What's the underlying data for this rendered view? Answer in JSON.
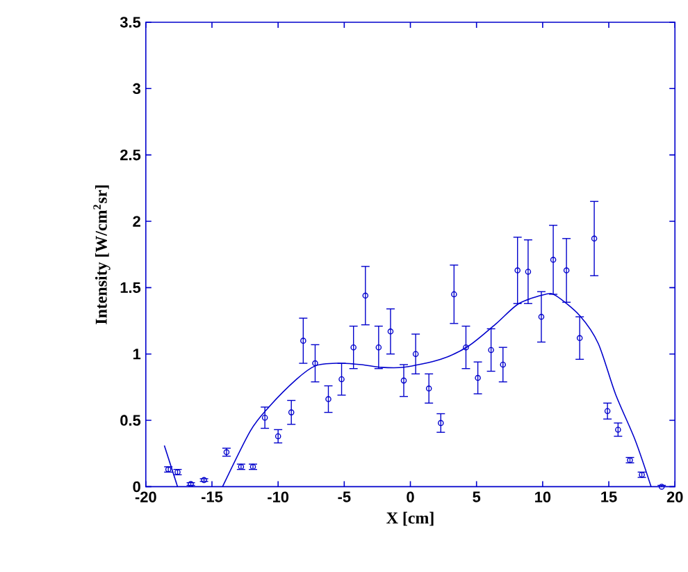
{
  "chart_data": {
    "type": "scatter",
    "xlabel": "X [cm]",
    "ylabel": "Intensity [W/cm$^{2}$sr]",
    "xlim": [
      -20,
      20
    ],
    "ylim": [
      0,
      3.5
    ],
    "xticks": [
      -20,
      -15,
      -10,
      -5,
      0,
      5,
      10,
      15,
      20
    ],
    "yticks": [
      0,
      0.5,
      1,
      1.5,
      2,
      2.5,
      3,
      3.5
    ],
    "grid": false,
    "series": [
      {
        "marker": "circle",
        "color": "#0000cc",
        "x": [
          -18.3,
          -17.6,
          -16.6,
          -15.6,
          -13.9,
          -12.8,
          -11.9,
          -11.0,
          -10.0,
          -9.0,
          -8.1,
          -7.2,
          -6.2,
          -5.2,
          -4.3,
          -3.4,
          -2.4,
          -1.5,
          -0.5,
          0.4,
          1.4,
          2.3,
          3.3,
          4.2,
          5.1,
          6.1,
          7.0,
          8.1,
          8.9,
          9.9,
          10.8,
          11.8,
          12.8,
          13.9,
          14.9,
          15.7,
          16.6,
          17.5,
          19.0
        ],
        "values": [
          0.13,
          0.11,
          0.02,
          0.05,
          0.26,
          0.15,
          0.15,
          0.52,
          0.38,
          0.56,
          1.1,
          0.93,
          0.66,
          0.81,
          1.05,
          1.44,
          1.05,
          1.17,
          0.8,
          1.0,
          0.74,
          0.48,
          1.45,
          1.05,
          0.82,
          1.03,
          0.92,
          1.63,
          1.62,
          1.28,
          1.71,
          1.63,
          1.12,
          1.87,
          0.57,
          0.43,
          0.2,
          0.09,
          0.0
        ],
        "errors": [
          0.02,
          0.02,
          0.01,
          0.01,
          0.03,
          0.02,
          0.02,
          0.08,
          0.05,
          0.09,
          0.17,
          0.14,
          0.1,
          0.12,
          0.16,
          0.22,
          0.16,
          0.17,
          0.12,
          0.15,
          0.11,
          0.07,
          0.22,
          0.16,
          0.12,
          0.16,
          0.13,
          0.25,
          0.24,
          0.19,
          0.26,
          0.24,
          0.16,
          0.28,
          0.06,
          0.05,
          0.02,
          0.02,
          0.01
        ]
      },
      {
        "type": "line",
        "marker": "none",
        "color": "#0000cc",
        "x": [
          -18.6,
          -17.6
        ],
        "values": [
          0.31,
          0.0
        ]
      },
      {
        "type": "line",
        "marker": "none",
        "color": "#0000cc",
        "x": [
          -14.2,
          -12.1,
          -10.7,
          -8.6,
          -7.2,
          -5.6,
          -3.7,
          -2.3,
          -0.5,
          2.3,
          4.4,
          6.5,
          8.2,
          10.2,
          11.0,
          12.8,
          14.2,
          15.5,
          17.0,
          18.2
        ],
        "values": [
          0.0,
          0.42,
          0.6,
          0.81,
          0.91,
          0.93,
          0.92,
          0.9,
          0.9,
          0.96,
          1.06,
          1.23,
          1.38,
          1.45,
          1.44,
          1.29,
          1.08,
          0.7,
          0.35,
          0.0
        ]
      }
    ]
  }
}
